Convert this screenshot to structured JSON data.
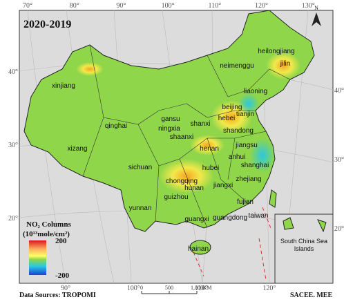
{
  "title": "2020-2019",
  "lon_top": [
    {
      "value": 70,
      "label": "70°"
    },
    {
      "value": 80,
      "label": "80°"
    },
    {
      "value": 90,
      "label": "90°"
    },
    {
      "value": 100,
      "label": "100°"
    },
    {
      "value": 110,
      "label": "110°"
    },
    {
      "value": 120,
      "label": "120°"
    },
    {
      "value": 130,
      "label": "130°"
    }
  ],
  "lon_bottom": [
    {
      "value": 90,
      "label": "90°"
    },
    {
      "value": 100,
      "label": "100°"
    },
    {
      "value": 110,
      "label": "110°"
    },
    {
      "value": 120,
      "label": "120°"
    }
  ],
  "lat_left": [
    {
      "value": 40,
      "label": "40°"
    },
    {
      "value": 30,
      "label": "30°"
    },
    {
      "value": 20,
      "label": "20°"
    }
  ],
  "lat_right": [
    {
      "value": 40,
      "label": "40°"
    },
    {
      "value": 30,
      "label": "30°"
    },
    {
      "value": 20,
      "label": "20°"
    }
  ],
  "provinces": [
    "heilongjiang",
    "jilin",
    "liaoning",
    "neimenggu",
    "beijing",
    "hebei",
    "tianjin",
    "shanxi",
    "shandong",
    "xinjiang",
    "gansu",
    "ningxia",
    "shaanxi",
    "qinghai",
    "henan",
    "jiangsu",
    "anhui",
    "shanghai",
    "xizang",
    "sichuan",
    "hubei",
    "chongqing",
    "zhejiang",
    "jiangxi",
    "hunan",
    "guizhou",
    "fujian",
    "yunnan",
    "guangxi",
    "guangdong",
    "taiwan",
    "hainan"
  ],
  "legend": {
    "title_line1": "NO₂ Columns",
    "title_line2": "(10¹³mole/cm²)",
    "max": 200,
    "min": -200
  },
  "north": "N",
  "inset": "South China Sea Islands",
  "scale": {
    "ticks": [
      0,
      500,
      {
        "value": 1000,
        "label": "1,000"
      }
    ],
    "unit": "KM"
  },
  "source": "Data Sources:  TROPOMI",
  "credit": "SACEE. MEE"
}
